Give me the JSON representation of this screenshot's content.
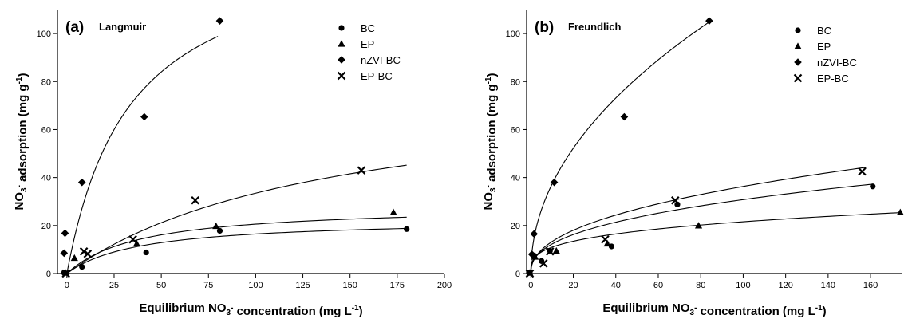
{
  "chart_data": [
    {
      "type": "scatter",
      "panel": "(a)",
      "model": "Langmuir",
      "xlabel": "Equilibrium NO3- concentration (mg L-1)",
      "ylabel": "NO3- adsorption (mg g-1)",
      "xlim": [
        -5,
        200
      ],
      "ylim": [
        0,
        110
      ],
      "xticks": [
        0,
        25,
        50,
        75,
        100,
        125,
        150,
        175,
        200
      ],
      "yticks": [
        0,
        20,
        40,
        60,
        80,
        100
      ],
      "legend_position": "top-right",
      "series": [
        {
          "name": "BC",
          "marker": "circle",
          "points": [
            [
              -1.5,
              0.3
            ],
            [
              8,
              2.8
            ],
            [
              42,
              8.8
            ],
            [
              81,
              17.8
            ],
            [
              180,
              18.5
            ]
          ],
          "fit": {
            "model": "langmuir",
            "qmax": 22.8,
            "K": 0.026
          }
        },
        {
          "name": "EP",
          "marker": "triangle",
          "points": [
            [
              -0.5,
              0.3
            ],
            [
              4,
              6.5
            ],
            [
              37,
              12.5
            ],
            [
              79,
              19.8
            ],
            [
              173,
              25.5
            ]
          ],
          "fit": {
            "model": "langmuir",
            "qmax": 28.5,
            "K": 0.026
          }
        },
        {
          "name": "nZVI-BC",
          "marker": "diamond",
          "points": [
            [
              -1.5,
              8.5
            ],
            [
              -1,
              16.8
            ],
            [
              8,
              38
            ],
            [
              41,
              65.3
            ],
            [
              81,
              105.3
            ]
          ],
          "fit": {
            "model": "langmuir",
            "qmax": 140,
            "K": 0.03,
            "xmax": 80
          }
        },
        {
          "name": "EP-BC",
          "marker": "cross",
          "points": [
            [
              -0.5,
              0
            ],
            [
              9,
              9.2
            ],
            [
              11,
              8.2
            ],
            [
              35,
              14.2
            ],
            [
              68,
              30.5
            ],
            [
              156,
              43
            ]
          ],
          "fit": {
            "model": "langmuir",
            "qmax": 80,
            "K": 0.0072
          }
        }
      ]
    },
    {
      "type": "scatter",
      "panel": "(b)",
      "model": "Freundlich",
      "xlabel": "Equilibrium NO3- concentration (mg L-1)",
      "ylabel": "NO3- adsorption (mg g-1)",
      "xlim": [
        -2,
        175
      ],
      "ylim": [
        0,
        110
      ],
      "xticks": [
        0,
        20,
        40,
        60,
        80,
        100,
        120,
        140,
        160
      ],
      "yticks": [
        0,
        20,
        40,
        60,
        80,
        100
      ],
      "legend_position": "top-right",
      "series": [
        {
          "name": "BC",
          "marker": "circle",
          "points": [
            [
              -0.5,
              0.5
            ],
            [
              1.5,
              7.5
            ],
            [
              5,
              5.2
            ],
            [
              9,
              9.5
            ],
            [
              38,
              11.3
            ],
            [
              69,
              28.8
            ],
            [
              161,
              36.3
            ]
          ],
          "fit": {
            "model": "freundlich",
            "K": 4.92,
            "n": 2.51,
            "xmax": 160
          }
        },
        {
          "name": "EP",
          "marker": "triangle",
          "points": [
            [
              -0.5,
              0.3
            ],
            [
              2,
              7
            ],
            [
              12,
              9.5
            ],
            [
              36,
              12.5
            ],
            [
              79,
              20
            ],
            [
              174,
              25.5
            ]
          ],
          "fit": {
            "model": "freundlich",
            "K": 5.59,
            "n": 3.41,
            "xmax": 174
          }
        },
        {
          "name": "nZVI-BC",
          "marker": "diamond",
          "points": [
            [
              0.5,
              8
            ],
            [
              1.5,
              16.5
            ],
            [
              11,
              38
            ],
            [
              44,
              65.3
            ],
            [
              84,
              105.3
            ]
          ],
          "fit": {
            "model": "freundlich",
            "K": 12.2,
            "n": 2.06,
            "xmax": 84
          }
        },
        {
          "name": "EP-BC",
          "marker": "cross",
          "points": [
            [
              -0.5,
              0
            ],
            [
              6,
              4.2
            ],
            [
              9,
              9.2
            ],
            [
              35,
              14.2
            ],
            [
              68,
              30.5
            ],
            [
              156,
              42.5
            ]
          ],
          "fit": {
            "model": "freundlich",
            "K": 4.9,
            "n": 2.3,
            "xmax": 158
          }
        }
      ]
    }
  ]
}
